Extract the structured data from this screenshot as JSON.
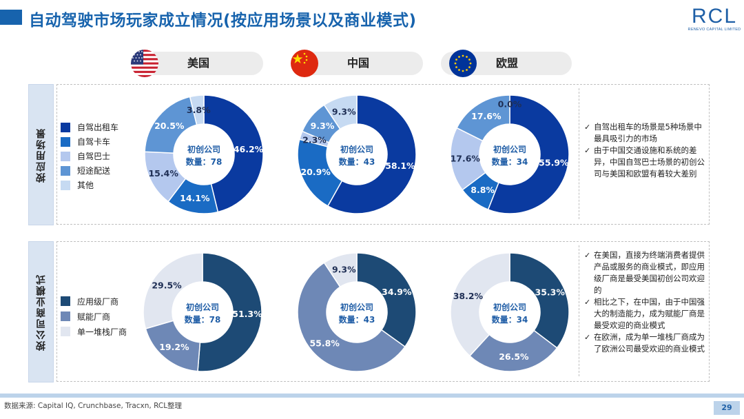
{
  "header": {
    "title": "自动驾驶市场玩家成立情况(按应用场景以及商业模式)",
    "logo_main": "RCL",
    "logo_sub": "RENEVO CAPITAL LIMITED"
  },
  "regions": [
    {
      "name": "美国",
      "flag": "us-flag-icon"
    },
    {
      "name": "中国",
      "flag": "china-flag-icon"
    },
    {
      "name": "欧盟",
      "flag": "eu-flag-icon"
    }
  ],
  "sections": {
    "scene_label": "按应用场景",
    "model_label": "按公司商业模式"
  },
  "legend_scene": [
    "自驾出租车",
    "自驾卡车",
    "自驾巴士",
    "短途配送",
    "其他"
  ],
  "legend_model": [
    "应用级厂商",
    "赋能厂商",
    "单一堆栈厂商"
  ],
  "colors": {
    "scene": [
      "#0a3aa0",
      "#1a6bc4",
      "#b4c8ee",
      "#5e95d4",
      "#c6daf2"
    ],
    "model": [
      "#1d4a75",
      "#6e88b6",
      "#e1e6f0"
    ],
    "accent": "#1763ad"
  },
  "chart_data": [
    {
      "type": "pie",
      "title": "美国 按应用场景",
      "center_line1": "初创公司",
      "center_line2": "数量：78",
      "categories": [
        "自驾出租车",
        "自驾卡车",
        "自驾巴士",
        "短途配送",
        "其他"
      ],
      "values": [
        46.2,
        14.1,
        15.4,
        20.5,
        3.8
      ],
      "labels": [
        "46.2%",
        "14.1%",
        "15.4%",
        "20.5%",
        "3.8%"
      ]
    },
    {
      "type": "pie",
      "title": "中国 按应用场景",
      "center_line1": "初创公司",
      "center_line2": "数量：43",
      "categories": [
        "自驾出租车",
        "自驾卡车",
        "自驾巴士",
        "短途配送",
        "其他"
      ],
      "values": [
        58.1,
        20.9,
        2.3,
        9.3,
        9.3
      ],
      "labels": [
        "58.1%",
        "20.9%",
        "2.3%",
        "9.3%",
        "9.3%"
      ]
    },
    {
      "type": "pie",
      "title": "欧盟 按应用场景",
      "center_line1": "初创公司",
      "center_line2": "数量：34",
      "categories": [
        "自驾出租车",
        "自驾卡车",
        "自驾巴士",
        "短途配送",
        "其他"
      ],
      "values": [
        55.9,
        8.8,
        17.6,
        17.6,
        0.0
      ],
      "labels": [
        "55.9%",
        "8.8%",
        "17.6%",
        "17.6%",
        "0.0%"
      ]
    },
    {
      "type": "pie",
      "title": "美国 按公司商业模式",
      "center_line1": "初创公司",
      "center_line2": "数量：78",
      "categories": [
        "应用级厂商",
        "赋能厂商",
        "单一堆栈厂商"
      ],
      "values": [
        51.3,
        19.2,
        29.5
      ],
      "labels": [
        "51.3%",
        "19.2%",
        "29.5%"
      ]
    },
    {
      "type": "pie",
      "title": "中国 按公司商业模式",
      "center_line1": "初创公司",
      "center_line2": "数量：43",
      "categories": [
        "应用级厂商",
        "赋能厂商",
        "单一堆栈厂商"
      ],
      "values": [
        34.9,
        55.8,
        9.3
      ],
      "labels": [
        "34.9%",
        "55.8%",
        "9.3%"
      ]
    },
    {
      "type": "pie",
      "title": "欧盟 按公司商业模式",
      "center_line1": "初创公司",
      "center_line2": "数量：34",
      "categories": [
        "应用级厂商",
        "赋能厂商",
        "单一堆栈厂商"
      ],
      "values": [
        35.3,
        26.5,
        38.2
      ],
      "labels": [
        "35.3%",
        "26.5%",
        "38.2%"
      ]
    }
  ],
  "notes_scene": [
    "自驾出租车的场景是5种场景中最具吸引力的市场",
    "由于中国交通设施和系统的差异，中国自驾巴士场景的初创公司与美国和欧盟有着较大差别"
  ],
  "notes_model": [
    "在美国，直接为终端消费者提供产品或服务的商业模式，即应用级厂商是最受美国初创公司欢迎的",
    "相比之下，在中国，由于中国强大的制造能力，成为赋能厂商是最受欢迎的商业模式",
    "在欧洲，成为单一堆栈厂商成为了欧洲公司最受欢迎的商业模式"
  ],
  "footer": {
    "source": "数据来源: Capital IQ, Crunchbase, Tracxn, RCL整理",
    "page": "29"
  }
}
